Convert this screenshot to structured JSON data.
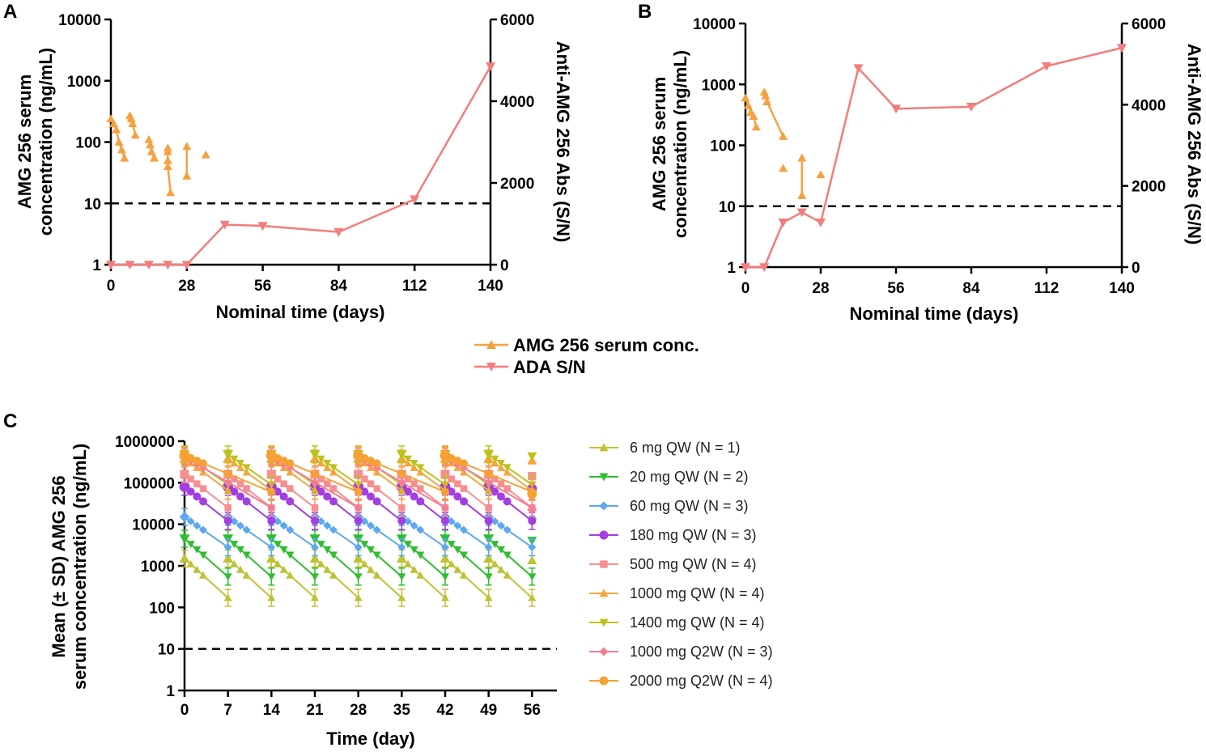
{
  "colors": {
    "conc": "#F5A142",
    "ada": "#F47C7C",
    "series_c": [
      "#BFC234",
      "#2EBE2E",
      "#5DA8F0",
      "#A33FE0",
      "#F78F8F",
      "#F6A53E",
      "#BDC21A",
      "#F57C95",
      "#F7A135"
    ]
  },
  "chart_data": [
    {
      "panel": "A",
      "type": "line",
      "xlabel": "Nominal time (days)",
      "ylabel": [
        "AMG 256 serum",
        "concentration (ng/mL)"
      ],
      "y2label": "Anti-AMG 256 Abs (S/N)",
      "xticks": [
        "0",
        "28",
        "56",
        "84",
        "112",
        "140"
      ],
      "xlim": [
        0,
        140
      ],
      "yticks": [
        "1",
        "10",
        "100",
        "1000",
        "10000"
      ],
      "ylim": [
        1,
        10000
      ],
      "yscale": "log",
      "y2ticks": [
        "0",
        "2000",
        "4000",
        "6000"
      ],
      "y2lim": [
        0,
        6000
      ],
      "dashed_line_y": 10,
      "conc_segments": [
        [
          [
            0,
            240
          ],
          [
            1,
            200
          ],
          [
            2,
            160
          ],
          [
            3,
            100
          ],
          [
            4,
            75
          ],
          [
            5,
            55
          ]
        ],
        [
          [
            7,
            270
          ],
          [
            7.5,
            240
          ],
          [
            8,
            200
          ],
          [
            9,
            130
          ]
        ],
        [
          [
            14,
            110
          ],
          [
            14.5,
            90
          ],
          [
            15,
            70
          ],
          [
            16,
            55
          ]
        ],
        [
          [
            21,
            80
          ],
          [
            21,
            70
          ],
          [
            21,
            50
          ],
          [
            21,
            40
          ],
          [
            22,
            15
          ]
        ],
        [
          [
            28,
            85
          ],
          [
            28,
            28
          ]
        ],
        [
          [
            35,
            62
          ]
        ]
      ],
      "ada": {
        "x": [
          0,
          7,
          14,
          21,
          28,
          42,
          56,
          84,
          112,
          140
        ],
        "y": [
          0,
          0,
          0,
          0,
          0,
          980,
          950,
          800,
          1600,
          4850
        ]
      }
    },
    {
      "panel": "B",
      "type": "line",
      "xlabel": "Nominal time (days)",
      "ylabel": [
        "AMG 256 serum",
        "concentration (ng/mL)"
      ],
      "y2label": "Anti-AMG 256 Abs (S/N)",
      "xticks": [
        "0",
        "28",
        "56",
        "84",
        "112",
        "140"
      ],
      "xlim": [
        0,
        140
      ],
      "yticks": [
        "1",
        "10",
        "100",
        "1000",
        "10000"
      ],
      "ylim": [
        1,
        10000
      ],
      "yscale": "log",
      "y2ticks": [
        "0",
        "2000",
        "4000",
        "6000"
      ],
      "y2lim": [
        0,
        6000
      ],
      "dashed_line_y": 10,
      "conc_segments": [
        [
          [
            0,
            600
          ],
          [
            1,
            450
          ],
          [
            2,
            350
          ],
          [
            3,
            300
          ],
          [
            4,
            200
          ]
        ],
        [
          [
            7,
            750
          ],
          [
            7.5,
            650
          ],
          [
            8,
            520
          ],
          [
            14,
            140
          ]
        ],
        [
          [
            14,
            42
          ]
        ],
        [
          [
            21,
            62
          ],
          [
            21,
            15
          ]
        ],
        [
          [
            28,
            33
          ]
        ]
      ],
      "ada": {
        "x": [
          0,
          7,
          14,
          21,
          28,
          42,
          56,
          84,
          112,
          140
        ],
        "y": [
          0,
          0,
          1100,
          1350,
          1100,
          4900,
          3900,
          3950,
          4950,
          5400
        ]
      }
    },
    {
      "panel": "C",
      "type": "line",
      "xlabel": "Time (day)",
      "ylabel": [
        "Mean (± SD) AMG 256",
        "serum concentration (ng/mL)"
      ],
      "xticks": [
        "0",
        "7",
        "14",
        "21",
        "28",
        "35",
        "42",
        "49",
        "56"
      ],
      "xlim": [
        0,
        60
      ],
      "yticks": [
        "1",
        "10",
        "100",
        "1000",
        "10000",
        "100000",
        "1000000"
      ],
      "ylim": [
        1,
        1000000
      ],
      "yscale": "log",
      "dashed_line_y": 10,
      "series": [
        {
          "name": "6 mg QW (N = 1)",
          "marker": "tri-up",
          "qw": true,
          "peak": 1500,
          "trough": 170
        },
        {
          "name": "20 mg QW (N = 2)",
          "marker": "tri-down",
          "qw": true,
          "peak": 4500,
          "trough": 550
        },
        {
          "name": "60 mg QW (N = 3)",
          "marker": "diamond",
          "qw": true,
          "peak": 15000,
          "trough": 2800
        },
        {
          "name": "180 mg QW (N = 3)",
          "marker": "circle",
          "qw": true,
          "peak": 80000,
          "trough": 12000
        },
        {
          "name": "500 mg QW (N = 4)",
          "marker": "square",
          "qw": true,
          "peak": 160000,
          "trough": 25000
        },
        {
          "name": "1000 mg QW (N = 4)",
          "marker": "tri-up",
          "qw": true,
          "peak": 380000,
          "trough": 65000
        },
        {
          "name": "1400 mg QW (N = 4)",
          "marker": "tri-down",
          "qw": true,
          "peak": 480000,
          "trough": 90000
        },
        {
          "name": "1000 mg Q2W (N = 3)",
          "marker": "diamond",
          "qw": false,
          "peak": 420000,
          "trough": 25000
        },
        {
          "name": "2000 mg Q2W (N = 4)",
          "marker": "circle",
          "qw": false,
          "peak": 450000,
          "trough": 60000
        }
      ]
    }
  ],
  "top_legend": [
    {
      "label": "AMG 256 serum conc.",
      "marker": "tri-up"
    },
    {
      "label": "ADA S/N",
      "marker": "tri-down"
    }
  ]
}
